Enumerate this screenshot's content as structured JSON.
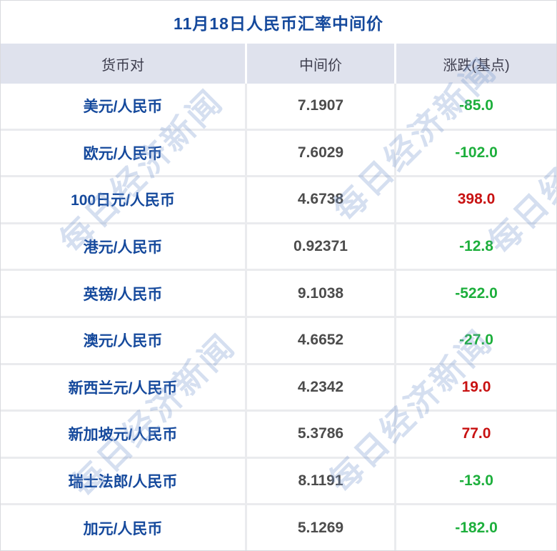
{
  "chart_data": {
    "type": "table",
    "title": "11月18日人民币汇率中间价",
    "columns": [
      "货币对",
      "中间价",
      "涨跌(基点)"
    ],
    "rows": [
      {
        "pair": "美元/人民币",
        "mid": "7.1907",
        "change": "-85.0",
        "direction": "down"
      },
      {
        "pair": "欧元/人民币",
        "mid": "7.6029",
        "change": "-102.0",
        "direction": "down"
      },
      {
        "pair": "100日元/人民币",
        "mid": "4.6738",
        "change": "398.0",
        "direction": "up"
      },
      {
        "pair": "港元/人民币",
        "mid": "0.92371",
        "change": "-12.8",
        "direction": "down"
      },
      {
        "pair": "英镑/人民币",
        "mid": "9.1038",
        "change": "-522.0",
        "direction": "down"
      },
      {
        "pair": "澳元/人民币",
        "mid": "4.6652",
        "change": "-27.0",
        "direction": "down"
      },
      {
        "pair": "新西兰元/人民币",
        "mid": "4.2342",
        "change": "19.0",
        "direction": "up"
      },
      {
        "pair": "新加坡元/人民币",
        "mid": "5.3786",
        "change": "77.0",
        "direction": "up"
      },
      {
        "pair": "瑞士法郎/人民币",
        "mid": "8.1191",
        "change": "-13.0",
        "direction": "down"
      },
      {
        "pair": "加元/人民币",
        "mid": "5.1269",
        "change": "-182.0",
        "direction": "down"
      }
    ]
  },
  "watermark": {
    "text": "每日经济新闻"
  },
  "colors": {
    "up": "#c81212",
    "down": "#1daf3c",
    "title": "#15499c",
    "pair_text": "#15499c",
    "mid_text": "#4c4c4c",
    "header_bg": "#dfe2ed",
    "header_text": "#3e3e4e",
    "separator": "#eaebee",
    "outer_border": "#d9dade",
    "watermark": "rgba(117,150,205,0.30)"
  }
}
